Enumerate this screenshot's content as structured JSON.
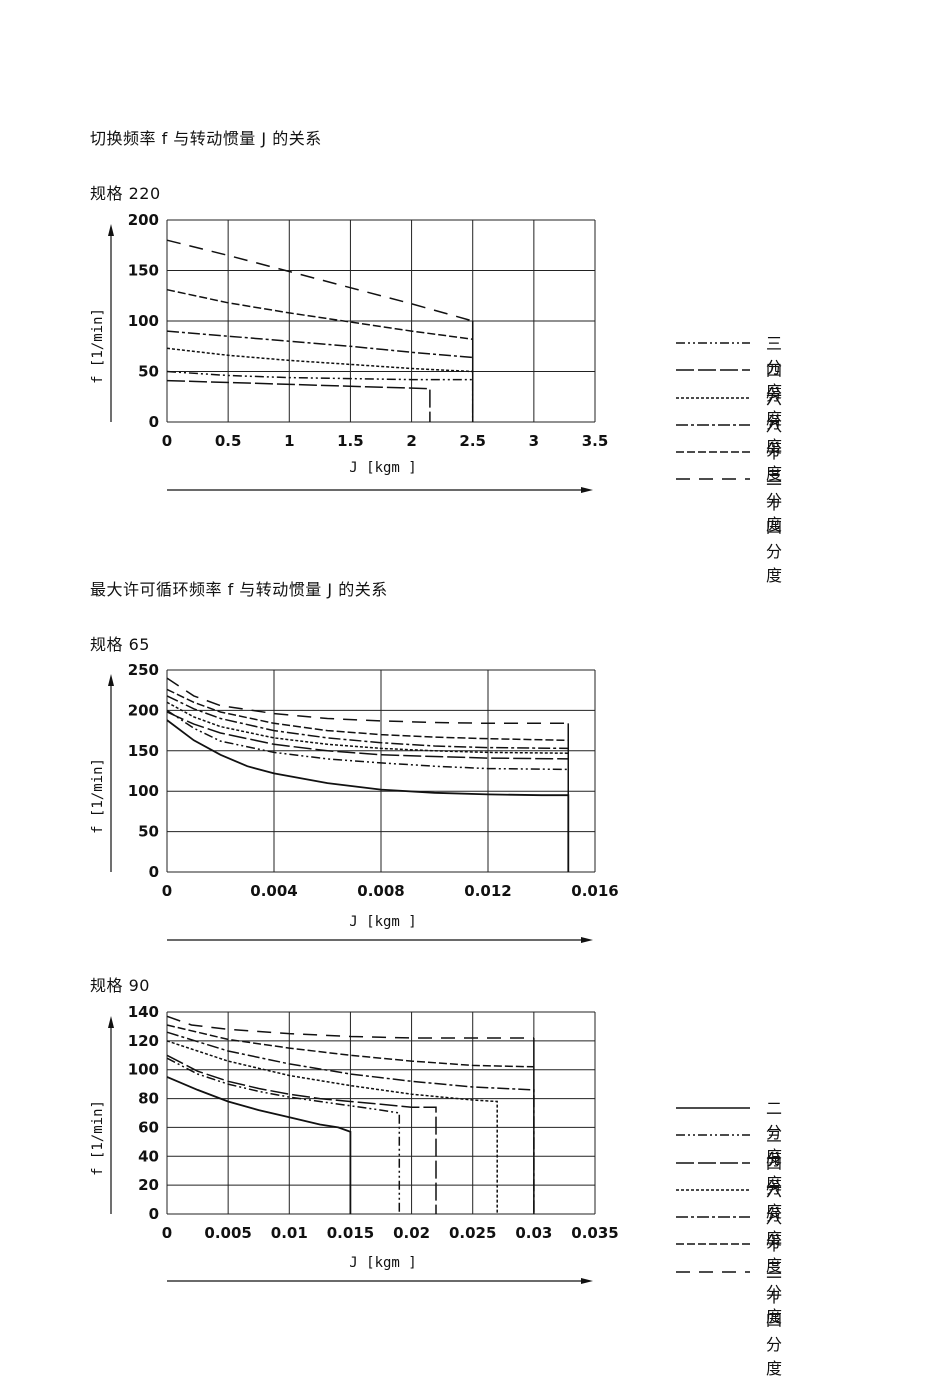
{
  "headings": {
    "section1": "切换频率 f 与转动惯量 J 的关系",
    "section2": "最大许可循环频率 f 与转动惯量 J 的关系"
  },
  "chart_data": [
    {
      "type": "line",
      "size_label": "规格 220",
      "xlabel": "J [kgm ]",
      "ylabel": "f [1/min]",
      "xlim": [
        0,
        3.5
      ],
      "ylim": [
        0,
        200
      ],
      "xticks": [
        0,
        0.5,
        1,
        1.5,
        2,
        2.5,
        3,
        3.5
      ],
      "xtick_labels": [
        "0",
        "0.5",
        "1",
        "1.5",
        "2",
        "2.5",
        "3",
        "3.5"
      ],
      "yticks": [
        0,
        50,
        100,
        150,
        200
      ],
      "ytick_labels": [
        "0",
        "50",
        "100",
        "150",
        "200"
      ],
      "grid": true,
      "legend_position": "right",
      "series": [
        {
          "name": "三分度",
          "style": "dashdotdot",
          "x": [
            0,
            0.5,
            1,
            1.5,
            2,
            2.5
          ],
          "y": [
            50,
            46,
            44,
            43,
            42,
            42
          ],
          "end_x": 2.5,
          "drop_to_zero": true
        },
        {
          "name": "四分度",
          "style": "longdash",
          "x": [
            0,
            2.15
          ],
          "y": [
            41,
            33
          ],
          "end_x": 2.15,
          "drop_to_zero": true
        },
        {
          "name": "六分度",
          "style": "dotted",
          "x": [
            0,
            0.5,
            1,
            1.5,
            2,
            2.5
          ],
          "y": [
            73,
            66,
            61,
            57,
            53,
            50
          ],
          "end_x": 2.5,
          "drop_to_zero": false
        },
        {
          "name": "八分度",
          "style": "dashdot",
          "x": [
            0,
            0.5,
            1,
            1.5,
            2,
            2.5
          ],
          "y": [
            90,
            85,
            80,
            75,
            69,
            64
          ],
          "end_x": 2.5,
          "drop_to_zero": false
        },
        {
          "name": "十二分度",
          "style": "dashed",
          "x": [
            0,
            0.5,
            1,
            1.5,
            2,
            2.5
          ],
          "y": [
            131,
            118,
            108,
            99,
            90,
            82
          ],
          "end_x": 2.5,
          "drop_to_zero": false
        },
        {
          "name": "二十四分度",
          "style": "widedash",
          "x": [
            0,
            0.5,
            1,
            1.5,
            2,
            2.5
          ],
          "y": [
            180,
            165,
            149,
            133,
            117,
            100
          ],
          "end_x": 2.5,
          "drop_to_zero": false
        }
      ]
    },
    {
      "type": "line",
      "size_label": "规格 65",
      "xlabel": "J [kgm ]",
      "ylabel": "f [1/min]",
      "xlim": [
        0,
        0.016
      ],
      "ylim": [
        0,
        250
      ],
      "xticks": [
        0,
        0.004,
        0.008,
        0.012,
        0.016
      ],
      "xtick_labels": [
        "0",
        "0.004",
        "0.008",
        "0.012",
        "0.016"
      ],
      "yticks": [
        0,
        50,
        100,
        150,
        200,
        250
      ],
      "ytick_labels": [
        "0",
        "50",
        "100",
        "150",
        "200",
        "250"
      ],
      "grid": true,
      "legend_position": "none",
      "series": [
        {
          "style": "solid",
          "x": [
            0,
            0.001,
            0.002,
            0.003,
            0.004,
            0.006,
            0.008,
            0.01,
            0.012,
            0.014,
            0.015
          ],
          "y": [
            188,
            163,
            145,
            131,
            122,
            110,
            102,
            98,
            96,
            95,
            95
          ],
          "end_x": 0.015,
          "drop_to_zero": true
        },
        {
          "style": "longdash",
          "x": [
            0,
            0.001,
            0.002,
            0.004,
            0.006,
            0.008,
            0.01,
            0.012,
            0.015
          ],
          "y": [
            198,
            183,
            172,
            158,
            150,
            145,
            143,
            141,
            140
          ],
          "end_x": 0.015,
          "drop_to_zero": false
        },
        {
          "style": "dashdotdot",
          "x": [
            0,
            0.001,
            0.002,
            0.004,
            0.006,
            0.008,
            0.01,
            0.012,
            0.015
          ],
          "y": [
            200,
            178,
            162,
            148,
            140,
            135,
            131,
            128,
            127
          ],
          "end_x": 0.015,
          "drop_to_zero": false
        },
        {
          "style": "dotted",
          "x": [
            0,
            0.001,
            0.002,
            0.004,
            0.006,
            0.008,
            0.01,
            0.012,
            0.015
          ],
          "y": [
            210,
            192,
            180,
            166,
            158,
            153,
            150,
            148,
            147
          ],
          "end_x": 0.015,
          "drop_to_zero": false
        },
        {
          "style": "dashdot",
          "x": [
            0,
            0.001,
            0.002,
            0.004,
            0.006,
            0.008,
            0.01,
            0.012,
            0.015
          ],
          "y": [
            218,
            202,
            190,
            175,
            166,
            160,
            156,
            154,
            153
          ],
          "end_x": 0.015,
          "drop_to_zero": false
        },
        {
          "style": "dashed",
          "x": [
            0,
            0.001,
            0.002,
            0.004,
            0.006,
            0.008,
            0.01,
            0.012,
            0.015
          ],
          "y": [
            226,
            210,
            198,
            184,
            175,
            170,
            167,
            165,
            163
          ],
          "end_x": 0.015,
          "drop_to_zero": false
        },
        {
          "style": "widedash",
          "x": [
            0,
            0.001,
            0.002,
            0.004,
            0.006,
            0.008,
            0.01,
            0.012,
            0.015
          ],
          "y": [
            240,
            218,
            206,
            196,
            190,
            187,
            185,
            184,
            184
          ],
          "end_x": 0.015,
          "drop_to_zero": false
        }
      ]
    },
    {
      "type": "line",
      "size_label": "规格 90",
      "xlabel": "J [kgm ]",
      "ylabel": "f [1/min]",
      "xlim": [
        0,
        0.035
      ],
      "ylim": [
        0,
        140
      ],
      "xticks": [
        0,
        0.005,
        0.01,
        0.015,
        0.02,
        0.025,
        0.03,
        0.035
      ],
      "xtick_labels": [
        "0",
        "0.005",
        "0.01",
        "0.015",
        "0.02",
        "0.025",
        "0.03",
        "0.035"
      ],
      "yticks": [
        0,
        20,
        40,
        60,
        80,
        100,
        120,
        140
      ],
      "ytick_labels": [
        "0",
        "20",
        "40",
        "60",
        "80",
        "100",
        "120",
        "140"
      ],
      "grid": true,
      "legend_position": "right",
      "series": [
        {
          "name": "二分度",
          "style": "solid",
          "x": [
            0,
            0.0025,
            0.005,
            0.0075,
            0.01,
            0.0125,
            0.014,
            0.015
          ],
          "y": [
            95,
            86,
            78,
            72,
            67,
            62,
            60,
            57
          ],
          "end_x": 0.015,
          "drop_to_zero": true
        },
        {
          "name": "三分度",
          "style": "dashdotdot",
          "x": [
            0,
            0.0025,
            0.005,
            0.0075,
            0.01,
            0.0125,
            0.015,
            0.0175,
            0.019
          ],
          "y": [
            108,
            97,
            90,
            85,
            81,
            78,
            75,
            72,
            70
          ],
          "end_x": 0.019,
          "drop_to_zero": true
        },
        {
          "name": "四分度",
          "style": "longdash",
          "x": [
            0,
            0.0025,
            0.005,
            0.0075,
            0.01,
            0.0125,
            0.015,
            0.0175,
            0.02,
            0.022
          ],
          "y": [
            110,
            99,
            92,
            87,
            83,
            80,
            78,
            76,
            74,
            74
          ],
          "end_x": 0.022,
          "drop_to_zero": true
        },
        {
          "name": "六分度",
          "style": "dotted",
          "x": [
            0,
            0.005,
            0.01,
            0.015,
            0.02,
            0.025,
            0.027
          ],
          "y": [
            120,
            106,
            96,
            89,
            83,
            79,
            78
          ],
          "end_x": 0.027,
          "drop_to_zero": true
        },
        {
          "name": "八分度",
          "style": "dashdot",
          "x": [
            0,
            0.005,
            0.01,
            0.015,
            0.02,
            0.025,
            0.03
          ],
          "y": [
            126,
            113,
            104,
            97,
            92,
            88,
            86
          ],
          "end_x": 0.03,
          "drop_to_zero": true
        },
        {
          "name": "十二分度",
          "style": "dashed",
          "x": [
            0,
            0.005,
            0.01,
            0.015,
            0.02,
            0.025,
            0.03
          ],
          "y": [
            131,
            121,
            115,
            110,
            106,
            103,
            102
          ],
          "end_x": 0.03,
          "drop_to_zero": false
        },
        {
          "name": "二十四分度",
          "style": "widedash",
          "x": [
            0,
            0.002,
            0.005,
            0.01,
            0.015,
            0.02,
            0.025,
            0.03
          ],
          "y": [
            137,
            131,
            128,
            125,
            123,
            122,
            122,
            122
          ],
          "end_x": 0.03,
          "drop_to_zero": false
        }
      ]
    }
  ],
  "legends": {
    "chart1": [
      {
        "label": "三分度",
        "style": "dashdotdot"
      },
      {
        "label": "四分度",
        "style": "longdash"
      },
      {
        "label": "六分度",
        "style": "dotted"
      },
      {
        "label": "八分度",
        "style": "dashdot"
      },
      {
        "label": "十二分度",
        "style": "dashed"
      },
      {
        "label": "二十四分度",
        "style": "widedash"
      }
    ],
    "chart3": [
      {
        "label": "二分度",
        "style": "solid"
      },
      {
        "label": "三分度",
        "style": "dashdotdot"
      },
      {
        "label": "四分度",
        "style": "longdash"
      },
      {
        "label": "六分度",
        "style": "dotted"
      },
      {
        "label": "八分度",
        "style": "dashdot"
      },
      {
        "label": "十二分度",
        "style": "dashed"
      },
      {
        "label": "二十四分度",
        "style": "widedash"
      }
    ]
  }
}
